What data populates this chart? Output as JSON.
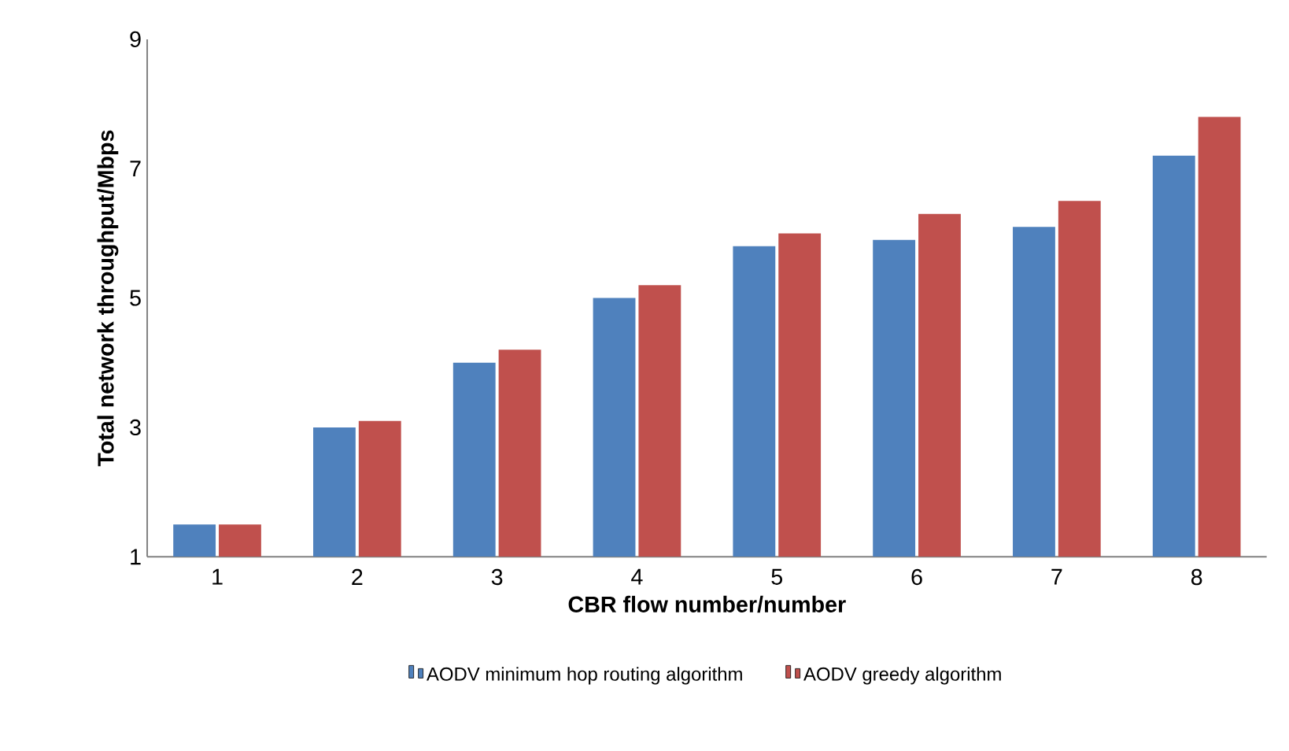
{
  "chart_data": {
    "type": "bar",
    "xlabel": "CBR flow number/number",
    "ylabel": "Total network throughput/Mbps",
    "categories": [
      "1",
      "2",
      "3",
      "4",
      "5",
      "6",
      "7",
      "8"
    ],
    "series": [
      {
        "name": "AODV minimum hop routing algorithm",
        "color": "#4f81bd",
        "values": [
          1.5,
          3.0,
          4.0,
          5.0,
          5.8,
          5.9,
          6.1,
          7.2
        ]
      },
      {
        "name": "AODV greedy algorithm",
        "color": "#c0504d",
        "values": [
          1.5,
          3.1,
          4.2,
          5.2,
          6.0,
          6.3,
          6.5,
          7.8
        ]
      }
    ],
    "ylim": [
      1,
      9
    ],
    "yticks": [
      1,
      3,
      5,
      7,
      9
    ],
    "legend": "bottom"
  }
}
